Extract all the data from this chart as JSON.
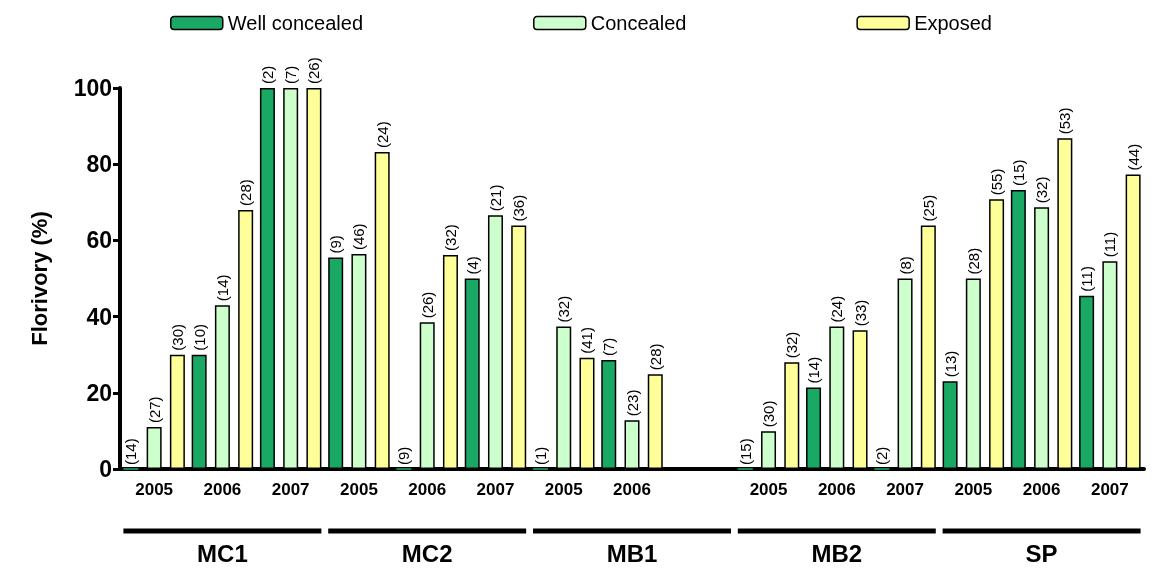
{
  "chart_data": {
    "type": "bar",
    "ylabel": "Florivory (%)",
    "categories": [
      "2005",
      "2006",
      "2007",
      "2005",
      "2006",
      "2007",
      "2005",
      "2006",
      null,
      "2005",
      "2006",
      "2007",
      "2005",
      "2006",
      "2007"
    ],
    "series": [
      {
        "name": "Well concealed",
        "color": "#1aa865",
        "values": [
          0,
          30,
          100,
          55.5,
          0,
          50,
          0,
          28.6,
          null,
          0,
          21.4,
          0,
          23,
          73.2,
          45.5
        ]
      },
      {
        "name": "Concealed",
        "color": "#ccffcc",
        "values": [
          11,
          43,
          100,
          56.4,
          38.5,
          66.6,
          37.4,
          12.8,
          null,
          9.9,
          37.4,
          50,
          50,
          68.7,
          54.5
        ]
      },
      {
        "name": "Exposed",
        "color": "#ffff99",
        "values": [
          30,
          68,
          100,
          83.2,
          56.2,
          63.9,
          29.2,
          24.9,
          null,
          28,
          36.4,
          63.9,
          70.8,
          86.8,
          77.3
        ]
      }
    ],
    "ylim": [
      0,
      100
    ],
    "yticks": [
      0,
      20,
      40,
      60,
      80,
      100
    ],
    "grid": false,
    "legend": "top",
    "annotations": [
      "(14)",
      "(27)",
      "(30)",
      "(10)",
      "(14)",
      "(28)",
      "(2)",
      "(7)",
      "(26)",
      "(9)",
      "(46)",
      "(24)",
      "(9)",
      "(26)",
      "(32)",
      "(4)",
      "(21)",
      "(36)",
      "(1)",
      "(32)",
      "(41)",
      "(7)",
      "(23)",
      "(28)",
      "(15)",
      "(30)",
      "(32)",
      "(14)",
      "(24)",
      "(33)",
      "(2)",
      "(8)",
      "(25)",
      "(13)",
      "(28)",
      "(55)",
      "(15)",
      "(32)",
      "(53)",
      "(11)",
      "(11)",
      "(44)",
      "MC1",
      "MC2",
      "MB1",
      "MB2",
      "SP"
    ]
  }
}
